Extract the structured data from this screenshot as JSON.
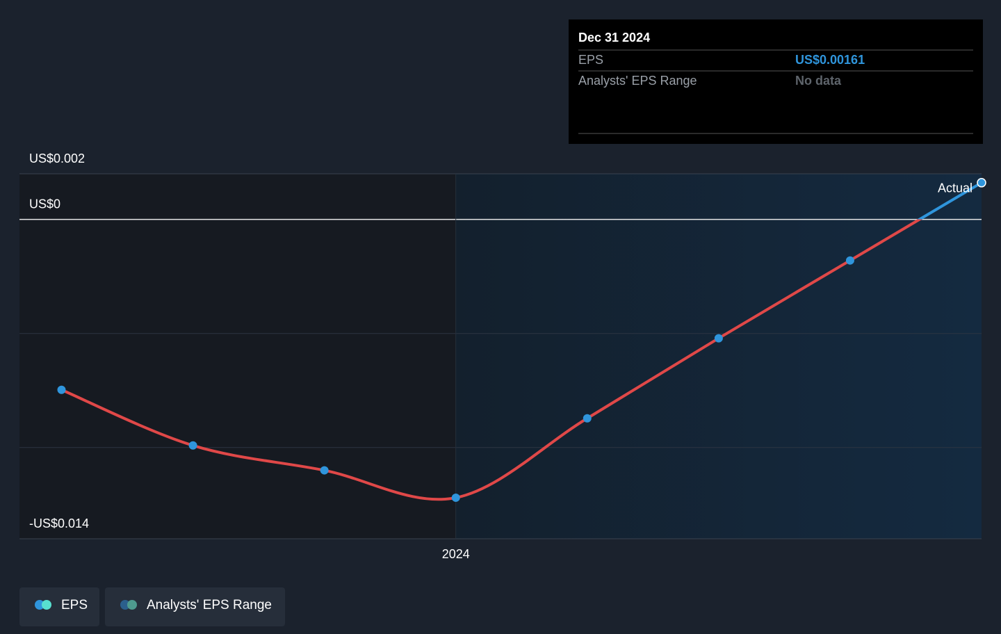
{
  "chart_data": {
    "type": "line",
    "x": [
      2023.25,
      2023.5,
      2023.75,
      2024.0,
      2024.25,
      2024.5,
      2024.75,
      2025.0
    ],
    "series": [
      {
        "name": "EPS",
        "color": "#2f95dc",
        "color_negative": "#e04848",
        "values": [
          -0.00747,
          -0.00991,
          -0.011,
          -0.0122,
          -0.00872,
          -0.00521,
          -0.0018,
          0.00161
        ]
      }
    ],
    "range_name": "Analysts' EPS Range",
    "xlim": [
      2023.17,
      2025.0
    ],
    "xticks": [
      {
        "value": 2024.0,
        "label": "2024"
      }
    ],
    "ylim": [
      -0.014,
      0.002
    ],
    "yticks": [
      {
        "value": 0.002,
        "label": "US$0.002"
      },
      {
        "value": 0,
        "label": "US$0"
      },
      {
        "value": -0.014,
        "label": "-US$0.014"
      }
    ],
    "ygrid": [
      -0.005,
      -0.01
    ],
    "forecast_start": 2024.0,
    "annotation": "Actual",
    "tooltip": {
      "title": "Dec 31 2024",
      "rows": [
        {
          "label": "EPS",
          "value": "US$0.00161"
        },
        {
          "label": "Analysts' EPS Range",
          "value": "No data"
        }
      ]
    }
  }
}
